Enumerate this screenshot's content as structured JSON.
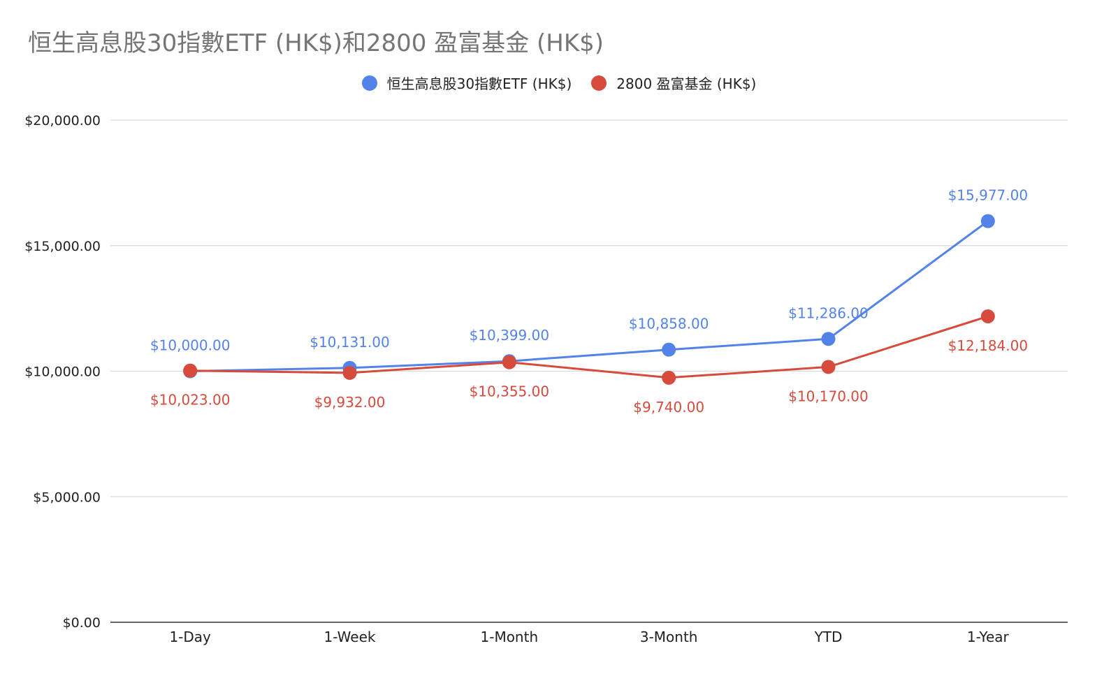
{
  "chart_data": {
    "type": "line",
    "title": "恒生高息股30指數ETF (HK$)和2800 盈富基金 (HK$)",
    "xlabel": "",
    "ylabel": "",
    "ylim": [
      0,
      20000
    ],
    "yticks": [
      {
        "value": 0,
        "label": "$0.00"
      },
      {
        "value": 5000,
        "label": "$5,000.00"
      },
      {
        "value": 10000,
        "label": "$10,000.00"
      },
      {
        "value": 15000,
        "label": "$15,000.00"
      },
      {
        "value": 20000,
        "label": "$20,000.00"
      }
    ],
    "categories": [
      "1-Day",
      "1-Week",
      "1-Month",
      "3-Month",
      "YTD",
      "1-Year"
    ],
    "grid": true,
    "legend_position": "top-center",
    "series": [
      {
        "name": "恒生高息股30指數ETF (HK$)",
        "color": "#5383E8",
        "label_position": "above",
        "values": [
          10000,
          10131,
          10399,
          10858,
          11286,
          15977
        ],
        "labels": [
          "$10,000.00",
          "$10,131.00",
          "$10,399.00",
          "$10,858.00",
          "$11,286.00",
          "$15,977.00"
        ]
      },
      {
        "name": "2800 盈富基金 (HK$)",
        "color": "#D64B3C",
        "label_position": "below",
        "values": [
          10023,
          9932,
          10355,
          9740,
          10170,
          12184
        ],
        "labels": [
          "$10,023.00",
          "$9,932.00",
          "$10,355.00",
          "$9,740.00",
          "$10,170.00",
          "$12,184.00"
        ]
      }
    ]
  }
}
